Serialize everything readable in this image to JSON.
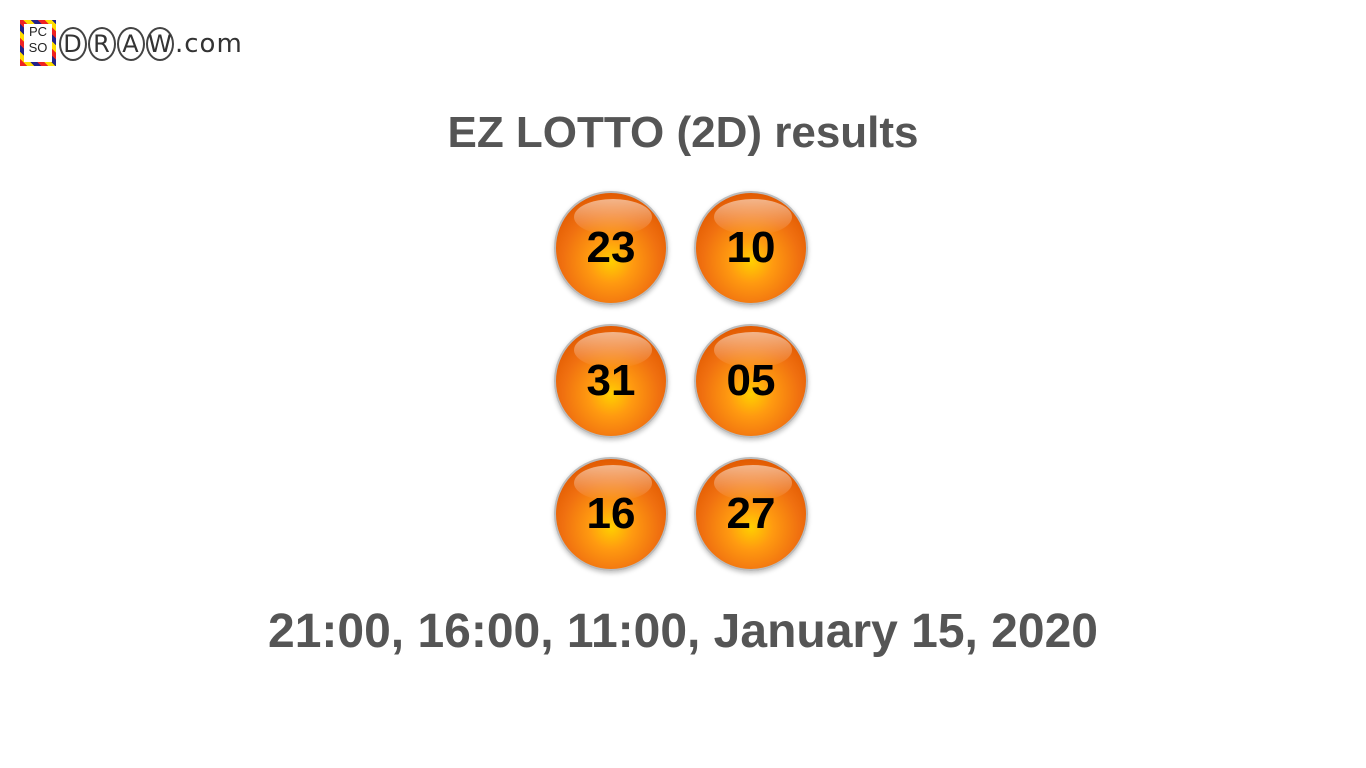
{
  "logo": {
    "line1": "PC",
    "line2": "SO",
    "letters": [
      "D",
      "R",
      "A",
      "W"
    ],
    "suffix": ".com"
  },
  "title": "EZ LOTTO (2D) results",
  "balls": [
    "23",
    "10",
    "31",
    "05",
    "16",
    "27"
  ],
  "ball_color": "#f07010",
  "date": "21:00, 16:00, 11:00, January 15, 2020"
}
